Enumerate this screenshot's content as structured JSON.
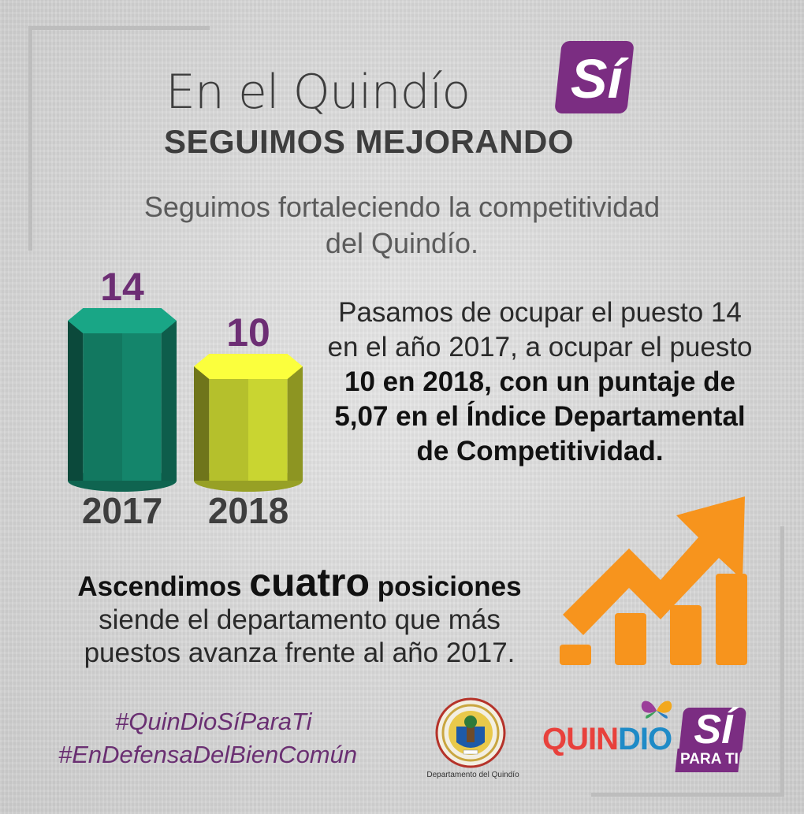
{
  "header": {
    "title": "En el Quindío",
    "badge": "Sí",
    "subtitle": "SEGUIMOS MEJORANDO"
  },
  "lead": {
    "line1": "Seguimos fortaleciendo la competitividad",
    "line2": "del Quindío."
  },
  "chart_data": {
    "type": "bar",
    "categories": [
      "2017",
      "2018"
    ],
    "values": [
      14,
      10
    ],
    "colors": [
      "#14856b",
      "#c9d531"
    ],
    "label_color": "#6d2e74"
  },
  "description": {
    "part1": "Pasamos de ocupar el puesto 14 en el año 2017, a ocupar el puesto ",
    "bold": "10 en 2018, con un puntaje de 5,07 en el Índice Departamental de Competitividad."
  },
  "ascend": {
    "word1": "Ascendimos",
    "word2": "cuatro",
    "word3": "posiciones",
    "line2": "siende el departamento que más",
    "line3": "puestos avanza frente al año 2017."
  },
  "footer": {
    "hashtag1": "#QuinDioSíParaTi",
    "hashtag2": "#EnDefensaDelBienComún",
    "dept_label": "Departamento del Quindío",
    "logo_q": "QUIN",
    "logo_d": "DIO",
    "logo_si": "SÍ",
    "logo_parati": "PARA TI"
  },
  "icons": {
    "growth_arrow": "trending-up-icon",
    "seal": "department-seal-icon",
    "butterfly": "butterfly-icon"
  },
  "colors": {
    "purple": "#7b2d82",
    "orange": "#f7941d",
    "teal": "#14856b",
    "lime": "#c9d531"
  }
}
